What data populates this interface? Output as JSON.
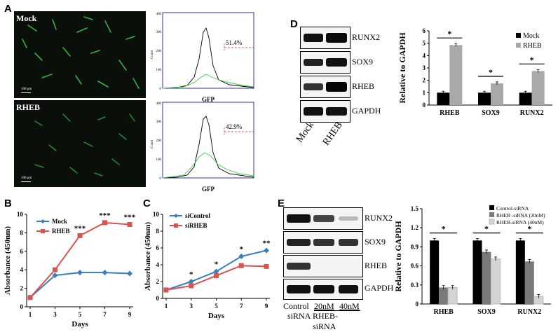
{
  "panel_labels": {
    "a": "A",
    "b": "B",
    "c": "C",
    "d": "D",
    "e": "E"
  },
  "panel_a": {
    "mock_label": "Mock",
    "rheb_label": "RHEB",
    "scalebar": "100 μm",
    "flow_ylabel": "Count",
    "flow_xlabel": "GFP",
    "flow_mock_pct": "51.4%",
    "flow_rheb_pct": "42.9%",
    "flow_yticks": [
      "0",
      "100",
      "200",
      "300",
      "400"
    ],
    "flow_xticks": [
      "10⁰",
      "10¹",
      "10²",
      "10³",
      "10⁴",
      "10⁵",
      "10⁶",
      "10⁷"
    ]
  },
  "panel_d": {
    "bands": [
      "RUNX2",
      "SOX9",
      "RHEB",
      "GAPDH"
    ],
    "lanes": [
      "Mock",
      "RHEB"
    ]
  },
  "panel_e": {
    "bands": [
      "RUNX2",
      "SOX9",
      "RHEB",
      "GAPDH"
    ],
    "lane_control_1": "Control",
    "lane_control_2": "siRNA",
    "lane_20": "20nM",
    "lane_40": "40nM",
    "lane_group": "RHEB-siRNA"
  },
  "chart_data": [
    {
      "id": "B",
      "type": "line",
      "xlabel": "Days",
      "ylabel": "Absorbance (450nm)",
      "x": [
        1,
        3,
        5,
        7,
        9
      ],
      "xticks": [
        "1",
        "3",
        "5",
        "7",
        "9"
      ],
      "ylim": [
        0,
        10
      ],
      "yticks": [
        "0",
        "2",
        "4",
        "6",
        "8",
        "10"
      ],
      "legend": "top-left",
      "series": [
        {
          "name": "Mock",
          "color": "#3a7ec2",
          "values": [
            1,
            3.4,
            3.7,
            3.7,
            3.6
          ]
        },
        {
          "name": "RHEB",
          "color": "#d9534f",
          "values": [
            1,
            4.0,
            7.7,
            9.1,
            8.9
          ]
        }
      ],
      "annotations": [
        {
          "x": 5,
          "text": "***"
        },
        {
          "x": 7,
          "text": "***"
        },
        {
          "x": 9,
          "text": "***"
        }
      ]
    },
    {
      "id": "C",
      "type": "line",
      "xlabel": "Days",
      "ylabel": "Absorbance (450nm)",
      "x": [
        1,
        3,
        5,
        7,
        9
      ],
      "xticks": [
        "1",
        "3",
        "5",
        "7",
        "9"
      ],
      "ylim": [
        0,
        10
      ],
      "yticks": [
        "0",
        "2",
        "4",
        "6",
        "8",
        "10"
      ],
      "legend": "top-left",
      "series": [
        {
          "name": "siControl",
          "color": "#3a7ec2",
          "values": [
            1,
            2.0,
            3.2,
            5.0,
            5.7
          ]
        },
        {
          "name": "siRHEB",
          "color": "#d9534f",
          "values": [
            1,
            1.5,
            2.7,
            3.9,
            3.8
          ]
        }
      ],
      "annotations": [
        {
          "x": 3,
          "text": "*"
        },
        {
          "x": 5,
          "text": "*"
        },
        {
          "x": 7,
          "text": "*"
        },
        {
          "x": 9,
          "text": "**"
        }
      ]
    },
    {
      "id": "D",
      "type": "bar",
      "ylabel": "Relative to GAPDH",
      "categories": [
        "RHEB",
        "SOX9",
        "RUNX2"
      ],
      "ylim": [
        0,
        6
      ],
      "yticks": [
        "0",
        "1",
        "2",
        "3",
        "4",
        "5",
        "6"
      ],
      "legend": "top-right",
      "series": [
        {
          "name": "Mock",
          "color": "#000000",
          "values": [
            1.0,
            1.0,
            1.0
          ]
        },
        {
          "name": "RHEB",
          "color": "#a9a9a9",
          "values": [
            4.85,
            1.75,
            2.75
          ]
        }
      ],
      "annotations": [
        "*",
        "*",
        "*"
      ]
    },
    {
      "id": "E",
      "type": "bar",
      "ylabel": "Relative to GAPDH",
      "categories": [
        "RHEB",
        "SOX9",
        "RUNX2"
      ],
      "ylim": [
        0,
        1.5
      ],
      "yticks": [
        "0",
        "0.3",
        "0.6",
        "0.9",
        "1.2",
        "1.5"
      ],
      "legend": "top-right",
      "series": [
        {
          "name": "Control-siRNA",
          "color": "#000000",
          "values": [
            1.0,
            1.0,
            1.0
          ]
        },
        {
          "name": "RHEB -siRNA (20nM)",
          "color": "#7a7a7a",
          "values": [
            0.26,
            0.82,
            0.67
          ]
        },
        {
          "name": "RHEB-siRNA (40nM)",
          "color": "#d4d4d4",
          "values": [
            0.26,
            0.71,
            0.12
          ]
        }
      ],
      "annotations": [
        "*",
        "*",
        "*"
      ]
    }
  ]
}
